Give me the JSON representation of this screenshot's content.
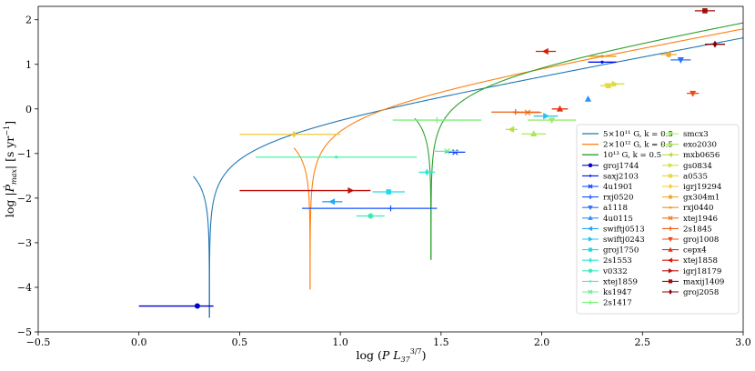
{
  "chart_data": {
    "type": "scatter",
    "xlabel": "log (P L37^{3/7})",
    "ylabel": "log |Ṗmax| [s yr^{-1}]",
    "xlim": [
      -0.5,
      3.0
    ],
    "ylim": [
      -5,
      2.3
    ],
    "xticks": [
      "−0.5",
      "0.0",
      "0.5",
      "1.0",
      "1.5",
      "2.0",
      "2.5",
      "3.0"
    ],
    "xtick_values": [
      -0.5,
      0.0,
      0.5,
      1.0,
      1.5,
      2.0,
      2.5,
      3.0
    ],
    "yticks": [
      "−5",
      "−4",
      "−3",
      "−2",
      "−1",
      "0",
      "1",
      "2"
    ],
    "ytick_values": [
      -5,
      -4,
      -3,
      -2,
      -1,
      0,
      1,
      2
    ],
    "model_lines": [
      {
        "name": "5×10^11 G, k = 0.5",
        "label": "5×10¹¹ G, k = 0.5",
        "color": "#1f77b4",
        "x0": 0.35,
        "slope": 0.857,
        "intercept": -0.975
      },
      {
        "name": "2×10^12 G, k = 0.5",
        "label": "2×10¹² G, k = 0.5",
        "color": "#ff7f0e",
        "x0": 0.85,
        "slope": 0.857,
        "intercept": -0.77
      },
      {
        "name": "10^13 G, k = 0.5",
        "label": "10¹³ G, k = 0.5",
        "color": "#2ca02c",
        "x0": 1.45,
        "slope": 0.857,
        "intercept": -0.62
      }
    ],
    "series": [
      {
        "name": "groj1744",
        "color": "#0000c8",
        "marker": "circle",
        "x": 0.29,
        "y": -4.42,
        "xerr": [
          0.29,
          0.08
        ]
      },
      {
        "name": "saxj2103",
        "color": "#0010f0",
        "marker": "dot",
        "x": 2.3,
        "y": 1.05,
        "xerr": [
          0.07,
          0.07
        ]
      },
      {
        "name": "4u1901",
        "color": "#0a3cff",
        "marker": "x",
        "x": 1.57,
        "y": -0.97,
        "xerr": [
          0.05,
          0.05
        ]
      },
      {
        "name": "rxj0520",
        "color": "#1550ff",
        "marker": "plus",
        "x": 1.25,
        "y": -2.23,
        "xerr": [
          0.44,
          0.23
        ]
      },
      {
        "name": "a1118",
        "color": "#2a70ff",
        "marker": "tri_down",
        "x": 2.69,
        "y": 1.1,
        "xerr": [
          0.05,
          0.05
        ]
      },
      {
        "name": "4u0115",
        "color": "#2c90ff",
        "marker": "tri_up",
        "x": 2.23,
        "y": 0.22,
        "xerr": [
          0,
          0
        ]
      },
      {
        "name": "swiftj0513",
        "color": "#1fa8ff",
        "marker": "tri_left",
        "x": 0.96,
        "y": -2.08,
        "xerr": [
          0.05,
          0.05
        ]
      },
      {
        "name": "swiftj0243",
        "color": "#1fc4f0",
        "marker": "tri_right",
        "x": 2.02,
        "y": -0.16,
        "xerr": [
          0.06,
          0.06
        ]
      },
      {
        "name": "groj1750",
        "color": "#20d8e8",
        "marker": "square",
        "x": 1.24,
        "y": -1.86,
        "xerr": [
          0.08,
          0.08
        ]
      },
      {
        "name": "2s1553",
        "color": "#2ee8d8",
        "marker": "diamond",
        "x": 1.43,
        "y": -1.42,
        "xerr": [
          0.04,
          0.04
        ]
      },
      {
        "name": "v0332",
        "color": "#40e8b8",
        "marker": "circle",
        "x": 1.15,
        "y": -2.4,
        "xerr": [
          0.07,
          0.07
        ]
      },
      {
        "name": "xtej1859",
        "color": "#50f0a8",
        "marker": "dot",
        "x": 0.98,
        "y": -1.08,
        "xerr": [
          0.4,
          0.4
        ]
      },
      {
        "name": "ks1947",
        "color": "#60f090",
        "marker": "x",
        "x": 1.53,
        "y": -0.95,
        "xerr": [
          0.06,
          0.06
        ]
      },
      {
        "name": "2s1417",
        "color": "#78f078",
        "marker": "plus",
        "x": 1.48,
        "y": -0.25,
        "xerr": [
          0.22,
          0.22
        ]
      },
      {
        "name": "smcx3",
        "color": "#98ec68",
        "marker": "tri_down",
        "x": 2.05,
        "y": -0.25,
        "xerr": [
          0.12,
          0.12
        ]
      },
      {
        "name": "exo2030",
        "color": "#a8e858",
        "marker": "tri_up",
        "x": 1.96,
        "y": -0.56,
        "xerr": [
          0.06,
          0.06
        ]
      },
      {
        "name": "mxb0656",
        "color": "#b8e048",
        "marker": "tri_left",
        "x": 1.85,
        "y": -0.46,
        "xerr": [
          0.03,
          0.03
        ]
      },
      {
        "name": "gs0834",
        "color": "#d0e040",
        "marker": "tri_right",
        "x": 2.36,
        "y": 0.56,
        "xerr": [
          0.05,
          0.05
        ]
      },
      {
        "name": "a0535",
        "color": "#e8d840",
        "marker": "square",
        "x": 2.33,
        "y": 0.52,
        "xerr": [
          0.04,
          0.04
        ]
      },
      {
        "name": "igrj19294",
        "color": "#f0c838",
        "marker": "diamond",
        "x": 0.77,
        "y": -0.57,
        "xerr": [
          0.27,
          0.23
        ]
      },
      {
        "name": "gx304m1",
        "color": "#f4a830",
        "marker": "circle",
        "x": 2.63,
        "y": 1.22,
        "xerr": [
          0.04,
          0.04
        ]
      },
      {
        "name": "rxj0440",
        "color": "#f09020",
        "marker": "dot",
        "x": 2.3,
        "y": 1.18,
        "xerr": [
          0.07,
          0.07
        ]
      },
      {
        "name": "xtej1946",
        "color": "#f07818",
        "marker": "x",
        "x": 1.93,
        "y": -0.08,
        "xerr": [
          0.07,
          0.07
        ]
      },
      {
        "name": "2s1845",
        "color": "#f06010",
        "marker": "plus",
        "x": 1.87,
        "y": -0.07,
        "xerr": [
          0.12,
          0.12
        ]
      },
      {
        "name": "groj1008",
        "color": "#f04810",
        "marker": "tri_down",
        "x": 2.75,
        "y": 0.35,
        "xerr": [
          0.03,
          0.03
        ]
      },
      {
        "name": "cepx4",
        "color": "#e83010",
        "marker": "tri_up",
        "x": 2.09,
        "y": 0.0,
        "xerr": [
          0.04,
          0.04
        ]
      },
      {
        "name": "xtej1858",
        "color": "#dc1808",
        "marker": "tri_left",
        "x": 2.02,
        "y": 1.29,
        "xerr": [
          0.05,
          0.05
        ]
      },
      {
        "name": "igrj18179",
        "color": "#c01010",
        "marker": "tri_right",
        "x": 1.05,
        "y": -1.83,
        "xerr": [
          0.55,
          0.1
        ]
      },
      {
        "name": "maxij1409",
        "color": "#a00c0c",
        "marker": "square",
        "x": 2.81,
        "y": 2.2,
        "xerr": [
          0.05,
          0.05
        ]
      },
      {
        "name": "groj2058",
        "color": "#800000",
        "marker": "diamond",
        "x": 2.86,
        "y": 1.45,
        "xerr": [
          0.05,
          0.05
        ]
      }
    ]
  }
}
